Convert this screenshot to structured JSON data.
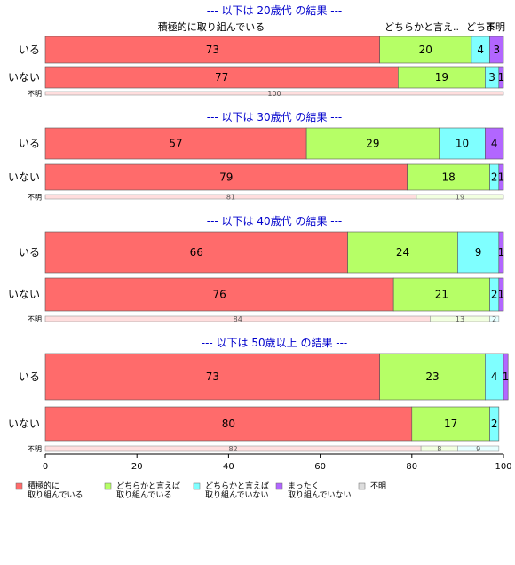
{
  "chart_data": {
    "type": "bar",
    "orientation": "horizontal",
    "stacked": true,
    "percent": true,
    "xlim": [
      0,
      100
    ],
    "xticks": [
      0,
      20,
      40,
      60,
      80,
      100
    ],
    "top_category_labels": [
      "積極的に取り組んでいる",
      "どちらかと言え..",
      "どちま",
      "不明"
    ],
    "legend": {
      "position": "bottom-left",
      "entries": [
        {
          "key": "k1",
          "lines": [
            "積極的に",
            "取り組んでいる"
          ],
          "color": "#ff6b6b"
        },
        {
          "key": "k2",
          "lines": [
            "どちらかと言えば",
            "取り組んでいる"
          ],
          "color": "#b6ff66"
        },
        {
          "key": "k3",
          "lines": [
            "どちらかと言えば",
            "取り組んでいない"
          ],
          "color": "#7fffff"
        },
        {
          "key": "k4",
          "lines": [
            "まったく",
            "取り組んでいない"
          ],
          "color": "#b266ff"
        },
        {
          "key": "k5",
          "lines": [
            "不明"
          ],
          "color": "#dddddd"
        }
      ]
    },
    "groups": [
      {
        "title": "--- 以下は 20歳代 の結果 ---",
        "rows": [
          {
            "label": "いる",
            "values": [
              73,
              20,
              4,
              3,
              0
            ]
          },
          {
            "label": "いない",
            "values": [
              77,
              19,
              3,
              1,
              0
            ]
          },
          {
            "label": "不明",
            "values": [
              100,
              0,
              0,
              0,
              0
            ],
            "muted": true
          }
        ]
      },
      {
        "title": "--- 以下は 30歳代 の結果 ---",
        "rows": [
          {
            "label": "いる",
            "values": [
              57,
              29,
              10,
              4,
              0
            ]
          },
          {
            "label": "いない",
            "values": [
              79,
              18,
              2,
              1,
              0
            ]
          },
          {
            "label": "不明",
            "values": [
              81,
              19,
              0,
              0,
              0
            ],
            "muted": true
          }
        ]
      },
      {
        "title": "--- 以下は 40歳代 の結果 ---",
        "rows": [
          {
            "label": "いる",
            "values": [
              66,
              24,
              9,
              1,
              0
            ]
          },
          {
            "label": "いない",
            "values": [
              76,
              21,
              2,
              1,
              0
            ]
          },
          {
            "label": "不明",
            "values": [
              84,
              13,
              2,
              0,
              0
            ],
            "muted": true
          }
        ]
      },
      {
        "title": "--- 以下は 50歳以上 の結果 ---",
        "rows": [
          {
            "label": "いる",
            "values": [
              73,
              23,
              4,
              1,
              0
            ]
          },
          {
            "label": "いない",
            "values": [
              80,
              17,
              2,
              0,
              0
            ]
          },
          {
            "label": "不明",
            "values": [
              82,
              8,
              9,
              0,
              0
            ],
            "muted": true
          }
        ]
      }
    ]
  }
}
